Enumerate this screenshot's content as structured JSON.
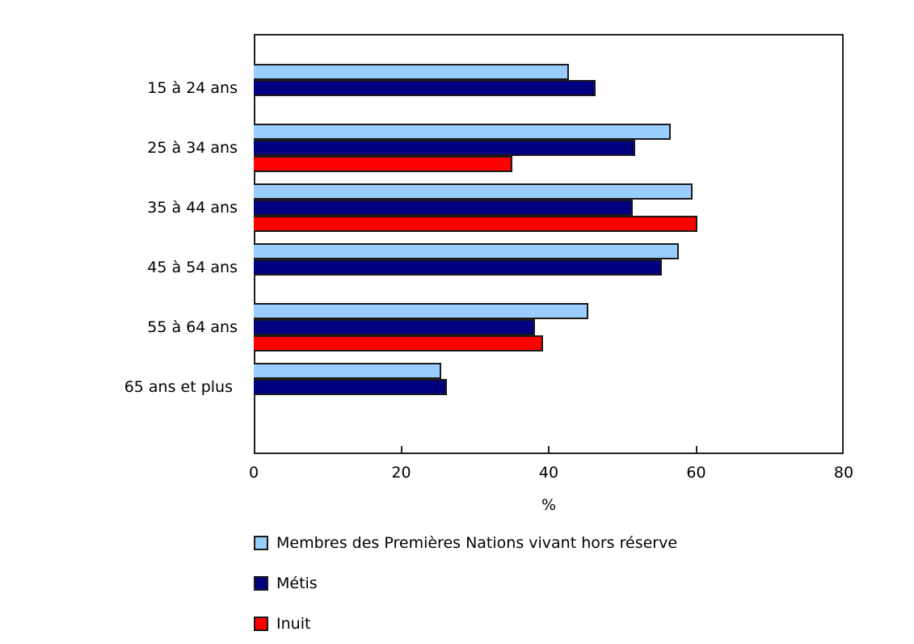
{
  "chart_data": {
    "type": "bar",
    "orientation": "horizontal",
    "title": "",
    "xlabel": "%",
    "ylabel": "",
    "xlim": [
      0,
      80
    ],
    "xticks": [
      0,
      20,
      40,
      60,
      80
    ],
    "grid": false,
    "legend_position": "bottom",
    "categories": [
      "15 à 24 ans",
      "25 à 34 ans",
      "35 à 44 ans",
      "45 à 54 ans",
      "55 à 64 ans",
      "65 ans et plus"
    ],
    "series": [
      {
        "name": "Membres des Premières Nations vivant hors réserve",
        "color": "#99ccff",
        "values": [
          42.7,
          56.6,
          59.5,
          57.6,
          45.4,
          25.4
        ]
      },
      {
        "name": "Métis",
        "color": "#000080",
        "values": [
          46.4,
          51.7,
          51.4,
          55.3,
          38.1,
          26.2
        ]
      },
      {
        "name": "Inuit",
        "color": "#ff0000",
        "values": [
          null,
          35.1,
          60.2,
          null,
          39.2,
          null
        ]
      }
    ]
  },
  "axis": {
    "tick_labels": [
      "0",
      "20",
      "40",
      "60",
      "80"
    ],
    "title": "%"
  },
  "legend": {
    "items": [
      {
        "label": "Membres des Premières Nations vivant hors réserve",
        "color": "#99ccff"
      },
      {
        "label": "Métis",
        "color": "#000080"
      },
      {
        "label": "Inuit",
        "color": "#ff0000"
      }
    ]
  }
}
